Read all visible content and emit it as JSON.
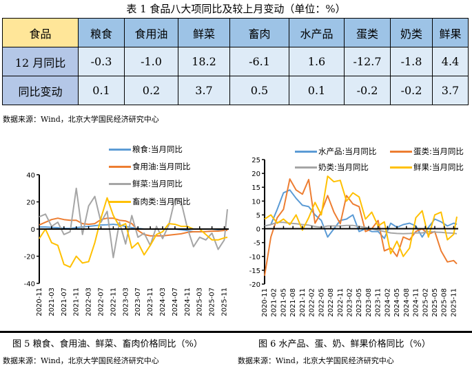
{
  "table": {
    "title": "表 1  食品八大项同比及较上月变动（单位：%）",
    "header": [
      "食品",
      "粮食",
      "食用油",
      "鲜菜",
      "畜肉",
      "水产品",
      "蛋类",
      "奶类",
      "鲜果"
    ],
    "rows": [
      [
        "12 月同比",
        "-0.3",
        "-1.0",
        "18.2",
        "-6.1",
        "1.6",
        "-12.7",
        "-1.8",
        "4.4"
      ],
      [
        "同比变动",
        "0.1",
        "0.2",
        "3.7",
        "0.5",
        "0.1",
        "-0.2",
        "-0.2",
        "3.7"
      ]
    ],
    "source": "数据来源：Wind，北京大学国民经济研究中心",
    "colors": {
      "corner": "#FFE699",
      "header": "#9DC3E6",
      "row_header": "#B4C7E7",
      "cell": "#DEEBF7"
    }
  },
  "chart_data": [
    {
      "type": "line",
      "caption": "图 5  粮食、食用油、鲜菜、畜肉价格同比（%）",
      "source": "数据来源：Wind，北京大学国民经济研究中心",
      "ylim": [
        -40,
        40
      ],
      "yticks": [
        "40",
        "20",
        "0",
        "-20",
        "-40"
      ],
      "xticks": [
        "2020-11",
        "2021-03",
        "2021-07",
        "2021-11",
        "2022-03",
        "2022-07",
        "2022-11",
        "2023-03",
        "2023-07",
        "2023-11",
        "2024-03",
        "2024-07",
        "2024-11",
        "2025-03",
        "2025-07",
        "2025-11"
      ],
      "x": [
        "2020-11",
        "2021-01",
        "2021-03",
        "2021-05",
        "2021-07",
        "2021-09",
        "2021-11",
        "2022-01",
        "2022-03",
        "2022-05",
        "2022-07",
        "2022-09",
        "2022-11",
        "2023-01",
        "2023-03",
        "2023-05",
        "2023-07",
        "2023-09",
        "2023-11",
        "2024-01",
        "2024-03",
        "2024-05",
        "2024-07",
        "2024-09",
        "2024-11",
        "2025-01",
        "2025-03",
        "2025-05",
        "2025-07",
        "2025-09",
        "2025-11",
        "2025-12"
      ],
      "legend": "top-right",
      "series": [
        {
          "name": "粮食:当月同比",
          "color": "#5B9BD5",
          "values": [
            1.5,
            1.5,
            1.2,
            1,
            0.5,
            0.5,
            1,
            1.5,
            2,
            2.5,
            3,
            3.2,
            3.5,
            3,
            2,
            1,
            0.5,
            0,
            0,
            0,
            0,
            0,
            0,
            -0.5,
            -1,
            -2,
            -2,
            -1.8,
            -1.5,
            -1,
            -0.5,
            -0.3
          ]
        },
        {
          "name": "食用油:当月同比",
          "color": "#ED7D31",
          "values": [
            3,
            5,
            7,
            8,
            7,
            6.5,
            6.5,
            4,
            3.5,
            4,
            7,
            8,
            8,
            6.5,
            6,
            4,
            -1,
            -4,
            -5,
            -5,
            -5,
            -4.5,
            -4,
            -3.5,
            -2.5,
            -2,
            -2,
            -1.8,
            -1.5,
            -1.5,
            -1,
            -1
          ]
        },
        {
          "name": "鲜菜:当月同比",
          "color": "#A5A5A5",
          "values": [
            9,
            11,
            2,
            5,
            -4,
            -2,
            30,
            -4,
            17,
            24,
            5,
            13,
            -21,
            5,
            -11,
            10,
            -6,
            -3,
            -12,
            2,
            -7,
            3,
            22,
            20,
            1,
            -13,
            -6,
            -8,
            -3,
            -15,
            -8,
            14.6
          ]
        },
        {
          "name": "畜肉类:当月同比",
          "color": "#FFC000",
          "values": [
            -7,
            0,
            -10,
            -12,
            -26,
            -28,
            -20,
            -25,
            -24,
            -10,
            8,
            23,
            10,
            2,
            4,
            -14,
            -10,
            -19,
            -12,
            -4,
            -2,
            4,
            3.5,
            2,
            2,
            0,
            0,
            -4,
            -8,
            -8,
            -6.5,
            -6.1
          ]
        }
      ]
    },
    {
      "type": "line",
      "caption": "图 6 水产品、蛋、奶、鲜果价格同比（%）",
      "source": "数据来源：Wind，北京大学国民经济研究中心",
      "ylim": [
        -20,
        25
      ],
      "yticks": [
        "25",
        "20",
        "15",
        "10",
        "5",
        "0",
        "-5",
        "-10",
        "-15",
        "-20"
      ],
      "xticks": [
        "2020-11",
        "2021-02",
        "2021-05",
        "2021-08",
        "2021-11",
        "2022-02",
        "2022-05",
        "2022-08",
        "2022-11",
        "2023-02",
        "2023-05",
        "2023-08",
        "2023-11",
        "2024-02",
        "2024-05",
        "2024-08",
        "2024-11",
        "2025-02",
        "2025-05",
        "2025-08",
        "2025-11"
      ],
      "x": [
        "2020-11",
        "2021-01",
        "2021-03",
        "2021-05",
        "2021-07",
        "2021-09",
        "2021-11",
        "2022-01",
        "2022-03",
        "2022-05",
        "2022-07",
        "2022-09",
        "2022-11",
        "2023-01",
        "2023-03",
        "2023-05",
        "2023-07",
        "2023-09",
        "2023-11",
        "2024-01",
        "2024-03",
        "2024-05",
        "2024-07",
        "2024-09",
        "2024-11",
        "2025-01",
        "2025-03",
        "2025-05",
        "2025-07",
        "2025-09",
        "2025-11",
        "2025-12"
      ],
      "legend": "top",
      "series": [
        {
          "name": "水产品:当月同比",
          "color": "#5B9BD5",
          "values": [
            1,
            1.5,
            7,
            13,
            14,
            11,
            8.5,
            8,
            5,
            3,
            -3,
            0,
            3,
            3.5,
            5,
            -1,
            0,
            -1,
            -1,
            -3.5,
            2,
            0.5,
            1.5,
            2,
            1,
            -3,
            0.5,
            3.5,
            2.5,
            1,
            2,
            1.6
          ]
        },
        {
          "name": "蛋类:当月同比",
          "color": "#ED7D31",
          "values": [
            -17,
            -3,
            4,
            7,
            18,
            14,
            12.5,
            17.8,
            2,
            6,
            12,
            6,
            1.8,
            12,
            9,
            8,
            -1,
            0,
            3,
            -8,
            -7,
            -10,
            -3,
            -4,
            -1,
            0,
            -2,
            -1,
            -8,
            -12,
            -11.5,
            -12.7
          ]
        },
        {
          "name": "奶类:当月同比",
          "color": "#A5A5A5",
          "values": [
            1,
            1.5,
            2.3,
            2.3,
            2,
            1.8,
            1.5,
            1.3,
            0.8,
            0.5,
            1,
            1,
            1,
            1.2,
            1.2,
            0.8,
            0.5,
            0,
            -0.5,
            -1,
            -1.5,
            -1.7,
            -1.8,
            -1.7,
            -1.5,
            -1.5,
            -1,
            -1.2,
            -1.3,
            -1.5,
            -1.6,
            -1.8
          ]
        },
        {
          "name": "鲜果:当月同比",
          "color": "#FFC000",
          "values": [
            3.5,
            5,
            2,
            3.5,
            1.5,
            5,
            -0.5,
            4,
            9.5,
            5,
            19,
            17,
            17.5,
            10,
            13,
            11.5,
            3.5,
            6,
            1,
            2.5,
            -9,
            -4.5,
            -10,
            -7,
            4,
            6.5,
            -3,
            5,
            6,
            -4,
            -2,
            4.4
          ]
        }
      ]
    }
  ]
}
